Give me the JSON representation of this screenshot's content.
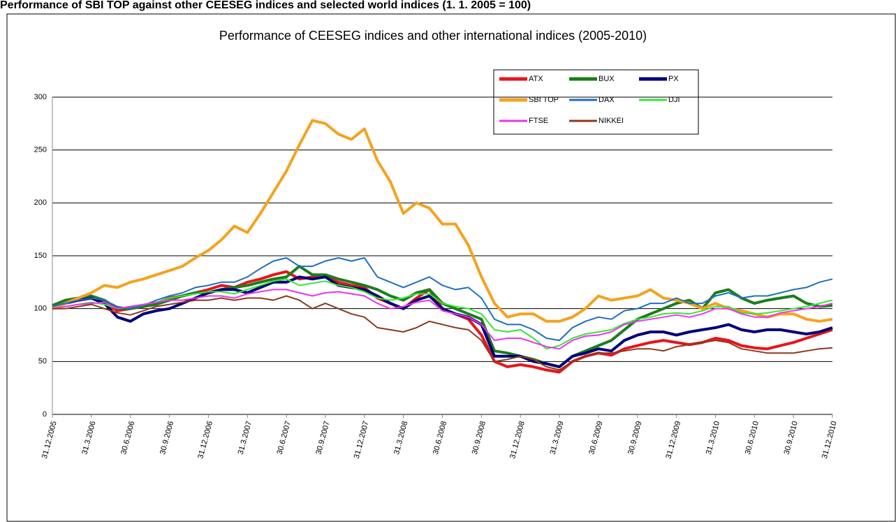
{
  "page_title": "Performance of SBI TOP against other CEESEG indices and selected world indices (1. 1. 2005 = 100)",
  "chart_data": {
    "type": "line",
    "title": "Performance of CEESEG indices and other international indices (2005-2010)",
    "categories": [
      "31.12.2005",
      null,
      null,
      "31.3.2006",
      null,
      null,
      "30.6.2006",
      null,
      null,
      "30.9.2006",
      null,
      null,
      "31.12.2006",
      null,
      null,
      "31.3.2007",
      null,
      null,
      "30.6.2007",
      null,
      null,
      "30.9.2007",
      null,
      null,
      "31.12.2007",
      null,
      null,
      "31.3.2008",
      null,
      null,
      "30.6.2008",
      null,
      null,
      "30.9.2008",
      null,
      null,
      "31.12.2008",
      null,
      null,
      "31.3.2009",
      null,
      null,
      "30.6.2009",
      null,
      null,
      "30.9.2009",
      null,
      null,
      "31.12.2009",
      null,
      null,
      "31.3.2010",
      null,
      null,
      "30.6.2010",
      null,
      null,
      "30.9.2010",
      null,
      null,
      "31.12.2010"
    ],
    "ylim": [
      0,
      300
    ],
    "yticks": [
      0,
      50,
      100,
      150,
      200,
      250,
      300
    ],
    "grid": true,
    "legend": "top-right",
    "series": [
      {
        "name": "ATX",
        "color": "#e8141b",
        "width": 4,
        "values": [
          100,
          105,
          108,
          110,
          105,
          98,
          100,
          102,
          105,
          110,
          112,
          115,
          118,
          122,
          120,
          125,
          128,
          132,
          135,
          128,
          130,
          130,
          125,
          122,
          120,
          110,
          105,
          100,
          110,
          118,
          100,
          95,
          90,
          75,
          50,
          45,
          47,
          45,
          42,
          40,
          50,
          55,
          58,
          56,
          62,
          65,
          68,
          70,
          68,
          66,
          68,
          72,
          70,
          65,
          63,
          62,
          65,
          68,
          72,
          76,
          80
        ]
      },
      {
        "name": "BUX",
        "color": "#1b7d1b",
        "width": 4,
        "values": [
          103,
          108,
          110,
          112,
          108,
          100,
          100,
          102,
          104,
          108,
          112,
          115,
          115,
          118,
          120,
          122,
          125,
          128,
          130,
          140,
          132,
          132,
          128,
          125,
          122,
          118,
          112,
          108,
          115,
          118,
          105,
          100,
          95,
          90,
          60,
          58,
          55,
          52,
          48,
          45,
          55,
          60,
          65,
          70,
          80,
          90,
          95,
          100,
          105,
          108,
          100,
          115,
          118,
          110,
          105,
          108,
          110,
          112,
          105,
          102,
          103
        ]
      },
      {
        "name": "PX",
        "color": "#00007a",
        "width": 4,
        "values": [
          100,
          105,
          108,
          110,
          105,
          92,
          88,
          95,
          98,
          100,
          105,
          110,
          115,
          118,
          118,
          115,
          120,
          125,
          125,
          130,
          128,
          130,
          122,
          120,
          118,
          112,
          105,
          100,
          108,
          112,
          100,
          95,
          92,
          85,
          55,
          55,
          55,
          50,
          48,
          45,
          55,
          58,
          62,
          60,
          70,
          75,
          78,
          78,
          75,
          78,
          80,
          82,
          85,
          80,
          78,
          80,
          80,
          78,
          76,
          78,
          82
        ]
      },
      {
        "name": "SBI TOP",
        "color": "#f5a21f",
        "width": 4,
        "values": [
          100,
          105,
          110,
          115,
          122,
          120,
          125,
          128,
          132,
          136,
          140,
          148,
          155,
          165,
          178,
          172,
          190,
          210,
          230,
          255,
          278,
          275,
          265,
          260,
          270,
          240,
          220,
          190,
          200,
          195,
          180,
          180,
          160,
          130,
          105,
          92,
          95,
          95,
          88,
          88,
          92,
          100,
          112,
          108,
          110,
          112,
          118,
          110,
          108,
          105,
          100,
          105,
          100,
          98,
          95,
          92,
          95,
          95,
          90,
          88,
          90
        ]
      },
      {
        "name": "DAX",
        "color": "#1f6fbf",
        "width": 2,
        "values": [
          102,
          105,
          108,
          110,
          108,
          102,
          100,
          103,
          108,
          112,
          115,
          120,
          122,
          125,
          125,
          130,
          138,
          145,
          148,
          140,
          140,
          145,
          148,
          145,
          148,
          130,
          125,
          120,
          125,
          130,
          122,
          118,
          120,
          110,
          90,
          85,
          85,
          80,
          72,
          70,
          82,
          88,
          92,
          90,
          98,
          100,
          105,
          105,
          110,
          105,
          105,
          112,
          115,
          110,
          112,
          112,
          115,
          118,
          120,
          125,
          128
        ]
      },
      {
        "name": "DJI",
        "color": "#33e833",
        "width": 2,
        "values": [
          100,
          102,
          104,
          106,
          104,
          100,
          102,
          104,
          106,
          110,
          112,
          114,
          116,
          116,
          114,
          118,
          122,
          126,
          128,
          122,
          124,
          126,
          122,
          120,
          116,
          110,
          108,
          110,
          114,
          114,
          105,
          102,
          100,
          95,
          80,
          78,
          80,
          72,
          62,
          65,
          72,
          76,
          78,
          80,
          86,
          90,
          92,
          95,
          96,
          95,
          98,
          102,
          102,
          96,
          95,
          96,
          98,
          100,
          102,
          105,
          108
        ]
      },
      {
        "name": "FTSE",
        "color": "#ee33ee",
        "width": 2,
        "values": [
          100,
          102,
          104,
          105,
          106,
          100,
          102,
          104,
          106,
          108,
          108,
          110,
          112,
          112,
          110,
          114,
          116,
          118,
          118,
          115,
          112,
          115,
          116,
          114,
          112,
          105,
          100,
          102,
          106,
          108,
          98,
          95,
          92,
          85,
          70,
          72,
          72,
          68,
          64,
          62,
          70,
          74,
          75,
          78,
          85,
          88,
          90,
          92,
          94,
          92,
          95,
          100,
          100,
          95,
          92,
          92,
          96,
          98,
          100,
          102,
          105
        ]
      },
      {
        "name": "NIKKEI",
        "color": "#8b3a1a",
        "width": 2,
        "values": [
          100,
          100,
          102,
          104,
          100,
          96,
          94,
          98,
          102,
          104,
          106,
          108,
          108,
          110,
          108,
          110,
          110,
          108,
          112,
          108,
          100,
          105,
          100,
          95,
          92,
          82,
          80,
          78,
          82,
          88,
          85,
          82,
          80,
          70,
          50,
          52,
          55,
          52,
          45,
          42,
          50,
          55,
          58,
          58,
          60,
          62,
          62,
          60,
          64,
          66,
          68,
          70,
          68,
          62,
          60,
          58,
          58,
          58,
          60,
          62,
          63
        ]
      }
    ]
  }
}
